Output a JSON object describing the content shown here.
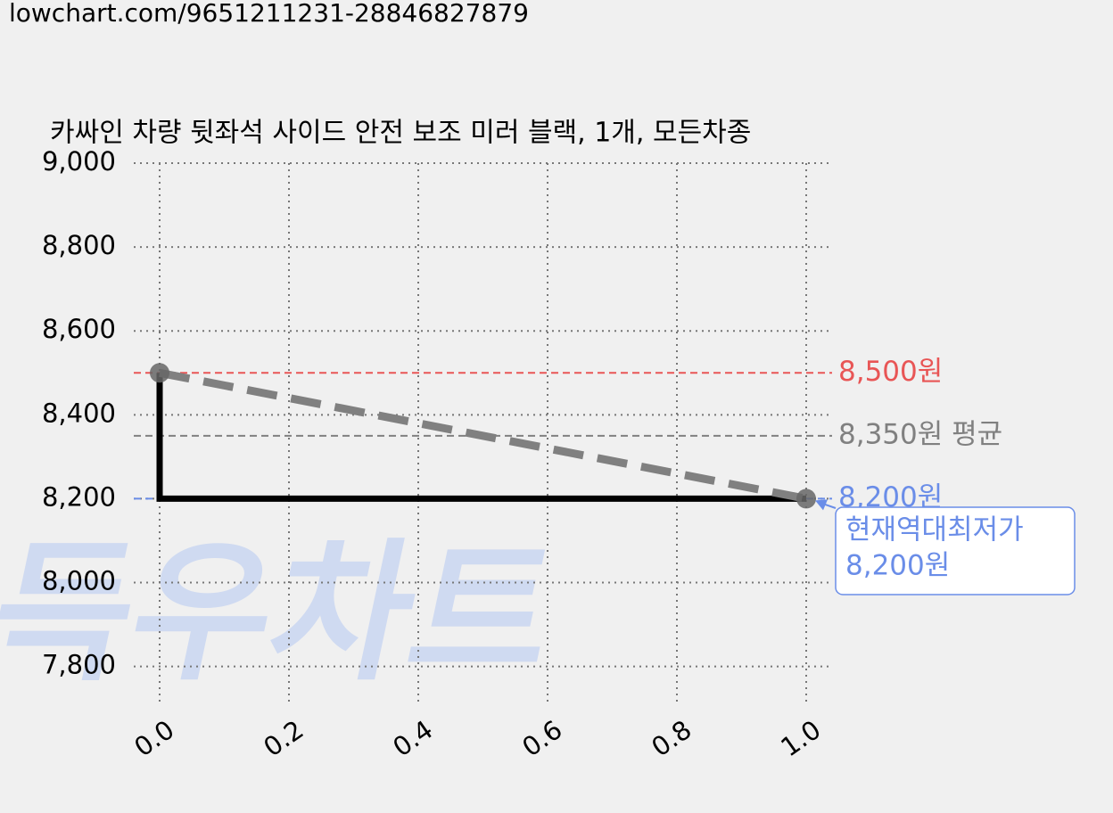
{
  "url": "lowchart.com/9651211231-28846827879",
  "watermark": "득우차트",
  "chart_data": {
    "type": "line",
    "title": "카싸인 차량 뒷좌석 사이드 안전 보조 미러 블랙, 1개, 모든차종",
    "x": [
      0,
      1
    ],
    "series": [
      {
        "color": "#000000",
        "values": [
          8500,
          8200
        ],
        "step": "pre"
      },
      {
        "color": "#808080",
        "values": [
          8500,
          8200
        ],
        "dashed": true,
        "markers": true
      }
    ],
    "hlines": [
      {
        "value": 8500,
        "label": "8,500원",
        "color": "#e85555"
      },
      {
        "value": 8350,
        "label": "8,350원 평균",
        "color": "#808080"
      },
      {
        "value": 8200,
        "label": "8,200원",
        "color": "#6a8de8"
      }
    ],
    "annotation": {
      "lines": [
        "현재역대최저가",
        "8,200원"
      ],
      "x": 1,
      "y": 8200,
      "color": "#6a8de8"
    },
    "xlim": [
      -0.04,
      1.04
    ],
    "ylim": [
      7710,
      9000
    ],
    "xticks": [
      {
        "value": 0,
        "label": "0.0"
      },
      {
        "value": 0.2,
        "label": "0.2"
      },
      {
        "value": 0.4,
        "label": "0.4"
      },
      {
        "value": 0.6,
        "label": "0.6"
      },
      {
        "value": 0.8,
        "label": "0.8"
      },
      {
        "value": 1,
        "label": "1.0"
      }
    ],
    "yticks": [
      {
        "value": 7800,
        "label": "7,800"
      },
      {
        "value": 8000,
        "label": "8,000"
      },
      {
        "value": 8200,
        "label": "8,200"
      },
      {
        "value": 8400,
        "label": "8,400"
      },
      {
        "value": 8600,
        "label": "8,600"
      },
      {
        "value": 8800,
        "label": "8,800"
      },
      {
        "value": 9000,
        "label": "9,000"
      }
    ],
    "grid": true
  }
}
